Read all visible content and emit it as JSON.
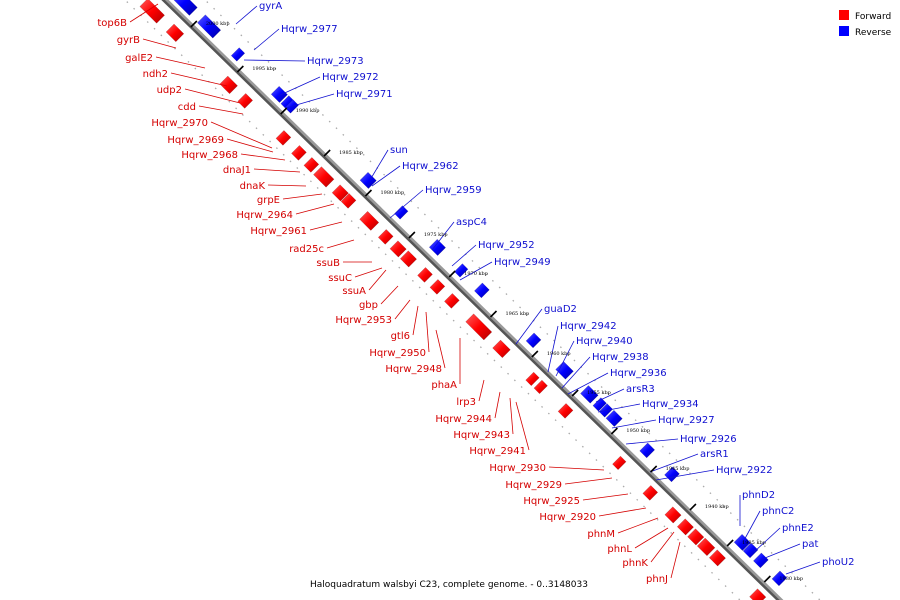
{
  "caption": "Haloquadratum walsbyi C23, complete genome. - 0..3148033",
  "legend": {
    "forward": {
      "label": "Forward",
      "color": "#ff0000"
    },
    "reverse": {
      "label": "Reverse",
      "color": "#0000ff"
    }
  },
  "ticks": [
    "2000 kbp",
    "1995 kbp",
    "1990 kbp",
    "1985 kbp",
    "1980 kbp",
    "1975 kbp",
    "1970 kbp",
    "1965 kbp",
    "1960 kbp",
    "1955 kbp",
    "1950 kbp",
    "1945 kbp",
    "1940 kbp",
    "1935 kbp",
    "1930 kbp"
  ],
  "forward_genes": [
    "top6B",
    "gyrB",
    "galE2",
    "ndh2",
    "udp2",
    "cdd",
    "Hqrw_2970",
    "Hqrw_2969",
    "Hqrw_2968",
    "dnaJ1",
    "dnaK",
    "grpE",
    "Hqrw_2964",
    "Hqrw_2961",
    "rad25c",
    "ssuB",
    "ssuC",
    "ssuA",
    "gbp",
    "Hqrw_2953",
    "gtl6",
    "Hqrw_2950",
    "Hqrw_2948",
    "phaA",
    "lrp3",
    "Hqrw_2944",
    "Hqrw_2943",
    "Hqrw_2941",
    "Hqrw_2930",
    "Hqrw_2929",
    "Hqrw_2925",
    "Hqrw_2920",
    "phnM",
    "phnL",
    "phnK",
    "phnJ"
  ],
  "reverse_genes": [
    "gyrA",
    "Hqrw_2977",
    "Hqrw_2973",
    "Hqrw_2972",
    "Hqrw_2971",
    "sun",
    "Hqrw_2962",
    "Hqrw_2959",
    "aspC4",
    "Hqrw_2952",
    "Hqrw_2949",
    "guaD2",
    "Hqrw_2942",
    "Hqrw_2940",
    "Hqrw_2938",
    "Hqrw_2936",
    "arsR3",
    "Hqrw_2934",
    "Hqrw_2927",
    "Hqrw_2926",
    "arsR1",
    "Hqrw_2922",
    "phnD2",
    "phnC2",
    "phnE2",
    "pat",
    "phoU2"
  ]
}
